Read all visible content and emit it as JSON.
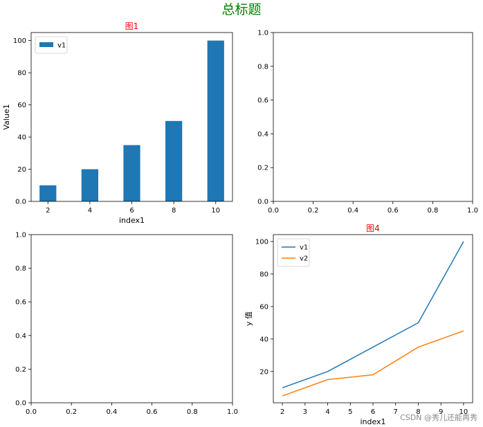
{
  "figure": {
    "suptitle": "总标题",
    "suptitle_color": "#008000",
    "title_color": "#ff0000",
    "watermark": "CSDN @秀儿还能再秀"
  },
  "chart_data": [
    {
      "type": "bar",
      "title": "图1",
      "xlabel": "index1",
      "ylabel": "Value1",
      "x": [
        2,
        4,
        6,
        8,
        10
      ],
      "series": [
        {
          "name": "v1",
          "values": [
            10,
            20,
            35,
            50,
            100
          ],
          "color": "#1f77b4"
        }
      ],
      "xticks": [
        2,
        4,
        6,
        8,
        10
      ],
      "yticks": [
        0,
        20,
        40,
        60,
        80,
        100
      ],
      "xlim": [
        1.2,
        10.8
      ],
      "ylim": [
        0,
        105
      ],
      "legend": "upper-left",
      "grid": false
    },
    {
      "type": "line",
      "title": "",
      "xlabel": "",
      "ylabel": "",
      "series": [],
      "xticks": [
        0.0,
        0.2,
        0.4,
        0.6,
        0.8,
        1.0
      ],
      "yticks": [
        0.0,
        0.2,
        0.4,
        0.6,
        0.8,
        1.0
      ],
      "xlim": [
        0,
        1
      ],
      "ylim": [
        0,
        1
      ],
      "grid": false
    },
    {
      "type": "line",
      "title": "",
      "xlabel": "",
      "ylabel": "",
      "series": [],
      "xticks": [
        0.0,
        0.2,
        0.4,
        0.6,
        0.8,
        1.0
      ],
      "yticks": [
        0.0,
        0.2,
        0.4,
        0.6,
        0.8,
        1.0
      ],
      "xlim": [
        0,
        1
      ],
      "ylim": [
        0,
        1
      ],
      "grid": false
    },
    {
      "type": "line",
      "title": "图4",
      "xlabel": "index1",
      "ylabel": "y 值",
      "x": [
        2,
        4,
        6,
        8,
        10
      ],
      "series": [
        {
          "name": "v1",
          "values": [
            10,
            20,
            35,
            50,
            100
          ],
          "color": "#1f77b4"
        },
        {
          "name": "v2",
          "values": [
            5,
            15,
            18,
            35,
            45
          ],
          "color": "#ff7f0e"
        }
      ],
      "xticks": [
        2,
        3,
        4,
        5,
        6,
        7,
        8,
        9,
        10
      ],
      "yticks": [
        20,
        40,
        60,
        80,
        100
      ],
      "xlim": [
        1.6,
        10.4
      ],
      "ylim": [
        0.75,
        104.25
      ],
      "legend": "upper-left",
      "grid": false
    }
  ]
}
